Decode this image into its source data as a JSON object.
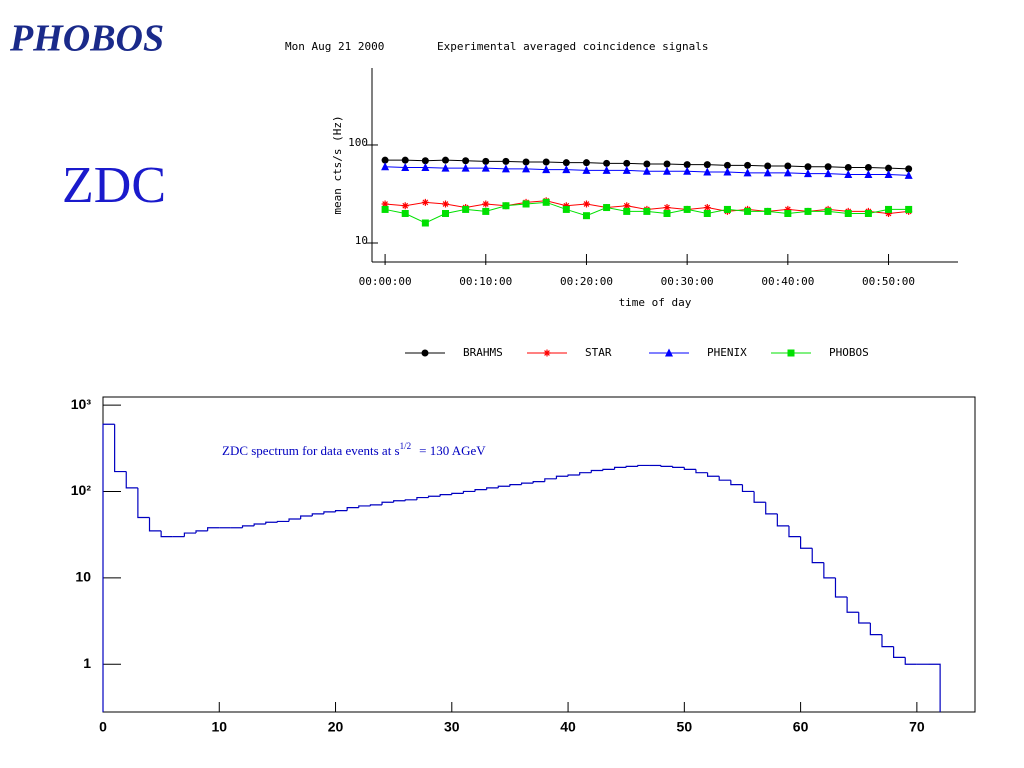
{
  "logo": "PHOBOS",
  "heading": "ZDC",
  "chart_data": [
    {
      "type": "line",
      "date": "Mon Aug 21 2000",
      "title": "Experimental averaged coincidence signals",
      "ylabel": "mean cts/s (Hz)",
      "xlabel": "time of day",
      "log_y": true,
      "xlim": [
        -1.3,
        56.9
      ],
      "xticks": [
        {
          "value": 0,
          "label": "00:00:00"
        },
        {
          "value": 10,
          "label": "00:10:00"
        },
        {
          "value": 20,
          "label": "00:20:00"
        },
        {
          "value": 30,
          "label": "00:30:00"
        },
        {
          "value": 40,
          "label": "00:40:00"
        },
        {
          "value": 50,
          "label": "00:50:00"
        }
      ],
      "ylim": [
        6.4,
        610
      ],
      "yticks": [
        10,
        100
      ],
      "x": [
        0,
        2,
        4,
        6,
        8,
        10,
        12,
        14,
        16,
        18,
        20,
        22,
        24,
        26,
        28,
        30,
        32,
        34,
        36,
        38,
        40,
        42,
        44,
        46,
        48,
        50,
        52
      ],
      "series": [
        {
          "name": "BRAHMS",
          "color": "#000000",
          "marker": "circle",
          "values": [
            70,
            70,
            69,
            70,
            69,
            68,
            68,
            67,
            67,
            66,
            66,
            65,
            65,
            64,
            64,
            63,
            63,
            62,
            62,
            61,
            61,
            60,
            60,
            59,
            59,
            58,
            57
          ]
        },
        {
          "name": "STAR",
          "color": "#ff0000",
          "marker": "star",
          "values": [
            25,
            24,
            26,
            25,
            23,
            25,
            24,
            26,
            27,
            24,
            25,
            23,
            24,
            22,
            23,
            22,
            23,
            21,
            22,
            21,
            22,
            21,
            22,
            21,
            21,
            20,
            21
          ]
        },
        {
          "name": "PHENIX",
          "color": "#0000ff",
          "marker": "triangle",
          "values": [
            60,
            59,
            59,
            58,
            58,
            58,
            57,
            57,
            56,
            56,
            55,
            55,
            55,
            54,
            54,
            54,
            53,
            53,
            52,
            52,
            52,
            51,
            51,
            50,
            50,
            50,
            49
          ]
        },
        {
          "name": "PHOBOS",
          "color": "#00e000",
          "marker": "square",
          "values": [
            22,
            20,
            16,
            20,
            22,
            21,
            24,
            25,
            26,
            22,
            19,
            23,
            21,
            21,
            20,
            22,
            20,
            22,
            21,
            21,
            20,
            21,
            21,
            20,
            20,
            22,
            22
          ]
        }
      ]
    },
    {
      "type": "histogram",
      "log_y": true,
      "color": "#0000c0",
      "annotation": [
        "ZDC spectrum for data events at  s",
        "1/2",
        "= 130 AGeV"
      ],
      "xlim": [
        0,
        75
      ],
      "xticks": [
        0,
        10,
        20,
        30,
        40,
        50,
        60,
        70
      ],
      "ylim": [
        0.28,
        1240
      ],
      "yticks": [
        1,
        10,
        {
          "value": 100,
          "label": "10²"
        },
        {
          "value": 1000,
          "label": "10³"
        }
      ],
      "bins": [
        0,
        1,
        2,
        3,
        4,
        5,
        6,
        7,
        8,
        9,
        10,
        11,
        12,
        13,
        14,
        15,
        16,
        17,
        18,
        19,
        20,
        21,
        22,
        23,
        24,
        25,
        26,
        27,
        28,
        29,
        30,
        31,
        32,
        33,
        34,
        35,
        36,
        37,
        38,
        39,
        40,
        41,
        42,
        43,
        44,
        45,
        46,
        47,
        48,
        49,
        50,
        51,
        52,
        53,
        54,
        55,
        56,
        57,
        58,
        59,
        60,
        61,
        62,
        63,
        64,
        65,
        66,
        67,
        68,
        69,
        70,
        71,
        72
      ],
      "counts": [
        600,
        170,
        110,
        50,
        35,
        30,
        30,
        33,
        35,
        38,
        38,
        38,
        40,
        42,
        44,
        45,
        48,
        52,
        55,
        58,
        60,
        65,
        68,
        70,
        75,
        78,
        80,
        85,
        88,
        92,
        95,
        100,
        105,
        110,
        115,
        120,
        125,
        130,
        140,
        150,
        155,
        165,
        175,
        180,
        190,
        195,
        200,
        200,
        195,
        190,
        180,
        165,
        150,
        135,
        120,
        100,
        75,
        55,
        40,
        30,
        22,
        15,
        10,
        6,
        4,
        3,
        2.2,
        1.6,
        1.2,
        1,
        1,
        1
      ]
    }
  ]
}
